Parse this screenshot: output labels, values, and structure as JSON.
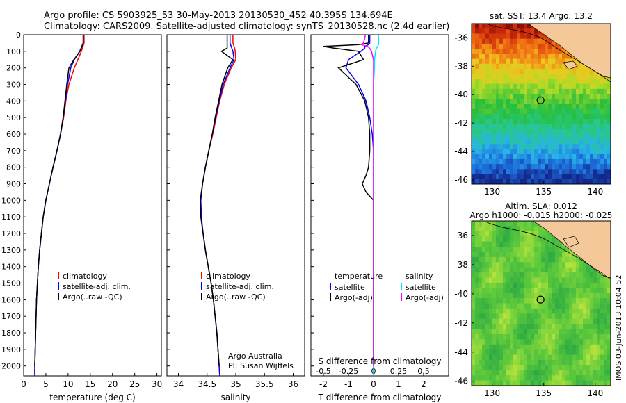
{
  "header": {
    "line1": "Argo profile: CS 5903925_53 30-May-2013 20130530_452 40.395S 134.694E",
    "line2": "Climatology: CARS2009. Satellite-adjusted climatology: synTS_20130528.nc (2.4d earlier)"
  },
  "footer": {
    "credit_line1": "Argo Australia",
    "credit_line2": "PI: Susan Wijffels",
    "watermark": "IMOS 03-Jun-2013 10:04:52"
  },
  "colors": {
    "climatology": "#ff0000",
    "satellite": "#0000ff",
    "argo": "#000000",
    "satellite_salinity": "#00e5ff",
    "argo_salinity": "#ff00ff",
    "land": "#f5c89a"
  },
  "chart_data": [
    {
      "type": "line",
      "id": "temperature",
      "xlabel": "temperature (deg C)",
      "xlim": [
        0,
        31
      ],
      "ylim": [
        2060,
        0
      ],
      "xticks": [
        0,
        5,
        10,
        15,
        20,
        25,
        30
      ],
      "yticks": [
        0,
        100,
        200,
        300,
        400,
        500,
        600,
        700,
        800,
        900,
        1000,
        1100,
        1200,
        1300,
        1400,
        1500,
        1600,
        1700,
        1800,
        1900,
        2000
      ],
      "legend": [
        "climatology",
        "satellite-adj. clim.",
        "Argo(..raw -QC)"
      ],
      "depth": [
        0,
        50,
        100,
        150,
        200,
        300,
        400,
        500,
        600,
        700,
        800,
        900,
        1000,
        1100,
        1200,
        1300,
        1400,
        1500,
        1600,
        1700,
        1800,
        1900,
        2000,
        2060
      ],
      "series": [
        {
          "name": "climatology",
          "values": [
            13.6,
            13.6,
            13.0,
            12.2,
            11.4,
            10.2,
            9.5,
            9.0,
            8.3,
            7.5,
            6.6,
            5.8,
            5.0,
            4.4,
            4.0,
            3.6,
            3.3,
            3.1,
            2.9,
            2.8,
            2.7,
            2.6,
            2.5,
            2.5
          ]
        },
        {
          "name": "satellite-adj. clim.",
          "values": [
            13.4,
            13.4,
            12.6,
            11.4,
            10.6,
            9.9,
            9.4,
            8.9,
            8.3,
            7.5,
            6.6,
            5.8,
            5.0,
            4.4,
            4.0,
            3.6,
            3.3,
            3.1,
            2.9,
            2.8,
            2.7,
            2.6,
            2.5,
            2.5
          ]
        },
        {
          "name": "Argo(..raw -QC)",
          "values": [
            13.4,
            13.4,
            12.7,
            11.3,
            10.2,
            9.7,
            9.3,
            8.9,
            8.3,
            7.5,
            6.6,
            5.8,
            5.0,
            4.4,
            4.0,
            3.6,
            3.3,
            3.1,
            2.9,
            2.8,
            2.7,
            2.6,
            2.5,
            null
          ]
        }
      ]
    },
    {
      "type": "line",
      "id": "salinity",
      "xlabel": "salinity",
      "xlim": [
        33.8,
        36.2
      ],
      "ylim": [
        2060,
        0
      ],
      "xticks": [
        34,
        34.5,
        35,
        35.5,
        36
      ],
      "legend": [
        "climatology",
        "satellite-adj. clim.",
        "Argo(..raw -QC)"
      ],
      "depth": [
        0,
        50,
        80,
        100,
        150,
        200,
        300,
        400,
        500,
        600,
        700,
        800,
        900,
        1000,
        1100,
        1200,
        1300,
        1400,
        1500,
        1600,
        1700,
        1800,
        1900,
        2000,
        2060
      ],
      "series": [
        {
          "name": "climatology",
          "values": [
            34.95,
            34.95,
            34.98,
            34.99,
            35.0,
            34.92,
            34.8,
            34.72,
            34.66,
            34.6,
            34.53,
            34.47,
            34.42,
            34.39,
            34.4,
            34.43,
            34.47,
            34.52,
            34.57,
            34.61,
            34.64,
            34.67,
            34.69,
            34.71,
            34.72
          ]
        },
        {
          "name": "satellite-adj. clim.",
          "values": [
            34.9,
            34.9,
            34.93,
            34.95,
            34.97,
            34.9,
            34.78,
            34.71,
            34.65,
            34.59,
            34.53,
            34.47,
            34.42,
            34.39,
            34.4,
            34.43,
            34.47,
            34.52,
            34.57,
            34.61,
            34.64,
            34.67,
            34.69,
            34.71,
            34.72
          ]
        },
        {
          "name": "Argo(..raw -QC)",
          "values": [
            34.85,
            34.85,
            34.85,
            34.75,
            34.95,
            34.86,
            34.76,
            34.7,
            34.64,
            34.59,
            34.53,
            34.47,
            34.42,
            34.38,
            34.39,
            34.43,
            34.47,
            34.52,
            34.57,
            34.61,
            34.64,
            34.67,
            34.69,
            34.71,
            null
          ]
        }
      ]
    },
    {
      "type": "line",
      "id": "difference",
      "top_xlabel": "S difference from climatology",
      "xlabel": "T difference from climatology",
      "xlim": [
        -2.5,
        3.0
      ],
      "ylim": [
        2060,
        0
      ],
      "xticks": [
        -2,
        -1,
        0,
        1,
        2
      ],
      "xtick_labels": [
        "-2",
        "-1",
        "0",
        "1",
        "2"
      ],
      "top_xticks": [
        -0.5,
        -0.25,
        0,
        0.25,
        0.5
      ],
      "top_xtick_labels": [
        "-0.5",
        "-0.25",
        "0",
        "0.25",
        "0.5"
      ],
      "top_scale": 4,
      "legend_left": {
        "title": "temperature",
        "items": [
          "satellite",
          "Argo(-adj)"
        ]
      },
      "legend_right": {
        "title": "salinity",
        "items": [
          "satellite",
          "Argo(-adj)"
        ]
      },
      "depth": [
        0,
        50,
        60,
        70,
        80,
        100,
        150,
        200,
        300,
        400,
        500,
        600,
        700,
        800,
        850,
        900,
        950,
        1000,
        1100,
        1200,
        1300,
        1400,
        1600,
        1800,
        2000,
        2060
      ],
      "series": [
        {
          "name": "temperature satellite",
          "values": [
            -0.15,
            -0.15,
            -0.2,
            -0.35,
            -0.35,
            -0.5,
            -1.0,
            -1.1,
            -0.6,
            -0.3,
            -0.15,
            -0.05,
            0,
            0,
            0,
            0,
            0,
            0,
            0,
            0,
            0,
            0,
            0,
            0,
            0,
            0
          ]
        },
        {
          "name": "temperature Argo(-adj)",
          "values": [
            -0.2,
            -0.2,
            -0.6,
            -2.0,
            -1.6,
            -0.6,
            -0.4,
            -1.4,
            -0.7,
            -0.35,
            -0.2,
            -0.15,
            -0.15,
            -0.2,
            -0.3,
            -0.45,
            -0.3,
            0,
            0,
            0,
            0,
            0,
            0,
            0,
            0,
            null
          ]
        },
        {
          "name": "salinity satellite",
          "values": [
            0.05,
            0.05,
            0.05,
            0.04,
            0.03,
            0.02,
            0.01,
            0.01,
            0,
            0,
            0,
            0,
            0,
            0,
            0,
            0,
            0,
            0,
            0,
            0,
            0,
            0,
            0,
            0,
            0,
            0
          ]
        },
        {
          "name": "salinity Argo(-adj)",
          "values": [
            -0.08,
            -0.1,
            -0.12,
            -0.06,
            -0.04,
            -0.02,
            0,
            0,
            0,
            0,
            0,
            0,
            0,
            0,
            0,
            0,
            0,
            0,
            0,
            0,
            0,
            0,
            0,
            0,
            0,
            null
          ]
        }
      ]
    },
    {
      "type": "heatmap",
      "id": "sst_map",
      "title": "sat. SST: 13.4 Argo: 13.2",
      "xlim": [
        128,
        141.5
      ],
      "ylim": [
        -46.3,
        -35
      ],
      "xticks": [
        130,
        135,
        140
      ],
      "yticks": [
        -36,
        -38,
        -40,
        -42,
        -44,
        -46
      ],
      "argo_position": [
        134.694,
        -40.395
      ]
    },
    {
      "type": "heatmap",
      "id": "sla_map",
      "title_line1": "Altim. SLA: 0.012",
      "title_line2": "Argo h1000: -0.015 h2000: -0.025",
      "xlim": [
        128,
        141.5
      ],
      "ylim": [
        -46.3,
        -35
      ],
      "xticks": [
        130,
        135,
        140
      ],
      "yticks": [
        -36,
        -38,
        -40,
        -42,
        -44,
        -46
      ],
      "argo_position": [
        134.694,
        -40.395
      ]
    }
  ]
}
